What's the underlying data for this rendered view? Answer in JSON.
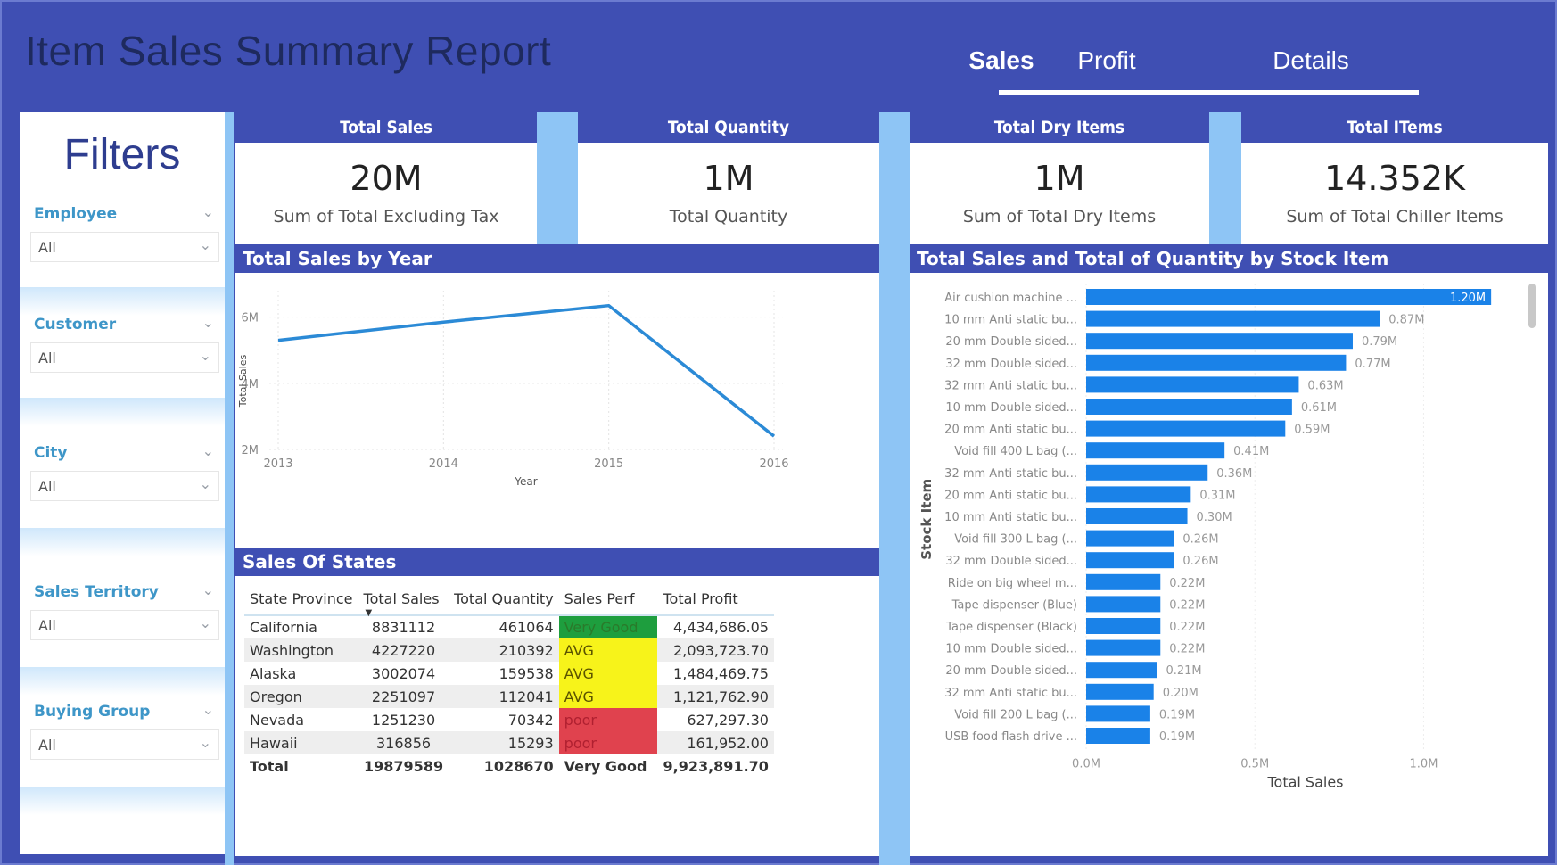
{
  "header": {
    "title": "Item Sales Summary Report",
    "tabs": [
      {
        "label": "Sales",
        "active": true
      },
      {
        "label": "Profit",
        "active": false
      },
      {
        "label": "Details",
        "active": false
      }
    ]
  },
  "colors": {
    "header_bg": "#3f4fb3",
    "accent_strip": "#8ec5f5",
    "line": "#2b8ad6",
    "bar": "#1a82e8",
    "perf_very_good": "#1e9e3e",
    "perf_avg": "#f7f31a",
    "perf_poor": "#e0424e"
  },
  "filters": {
    "title": "Filters",
    "slicers": [
      {
        "label": "Employee",
        "value": "All"
      },
      {
        "label": "Customer",
        "value": "All"
      },
      {
        "label": "City",
        "value": "All"
      },
      {
        "label": "Sales Territory",
        "value": "All"
      },
      {
        "label": "Buying Group",
        "value": "All"
      }
    ]
  },
  "kpis": [
    {
      "title": "Total Sales",
      "value": "20M",
      "subtitle": "Sum of Total Excluding Tax"
    },
    {
      "title": "Total Quantity",
      "value": "1M",
      "subtitle": "Total Quantity"
    },
    {
      "title": "Total Dry Items",
      "value": "1M",
      "subtitle": "Sum of Total Dry Items"
    },
    {
      "title": "Total ITems",
      "value": "14.352K",
      "subtitle": "Sum of Total Chiller Items"
    }
  ],
  "line_panel": {
    "title": "Total Sales by Year"
  },
  "table_panel": {
    "title": "Sales Of States",
    "columns": [
      "State Province",
      "Total Sales",
      "Total Quantity",
      "Sales Perf",
      "Total Profit"
    ],
    "rows": [
      {
        "state": "California",
        "sales": "8831112",
        "qty": "461064",
        "perf": "Very Good",
        "perf_level": "very_good",
        "profit": "4,434,686.05"
      },
      {
        "state": "Washington",
        "sales": "4227220",
        "qty": "210392",
        "perf": "AVG",
        "perf_level": "avg",
        "profit": "2,093,723.70"
      },
      {
        "state": "Alaska",
        "sales": "3002074",
        "qty": "159538",
        "perf": "AVG",
        "perf_level": "avg",
        "profit": "1,484,469.75"
      },
      {
        "state": "Oregon",
        "sales": "2251097",
        "qty": "112041",
        "perf": "AVG",
        "perf_level": "avg",
        "profit": "1,121,762.90"
      },
      {
        "state": "Nevada",
        "sales": "1251230",
        "qty": "70342",
        "perf": "poor",
        "perf_level": "poor",
        "profit": "627,297.30"
      },
      {
        "state": "Hawaii",
        "sales": "316856",
        "qty": "15293",
        "perf": "poor",
        "perf_level": "poor",
        "profit": "161,952.00"
      }
    ],
    "total": {
      "state": "Total",
      "sales": "19879589",
      "qty": "1028670",
      "perf": "Very Good",
      "profit": "9,923,891.70"
    }
  },
  "bar_panel": {
    "title": "Total Sales and Total of Quantity by Stock Item"
  },
  "chart_data": [
    {
      "type": "line",
      "title": "Total Sales by Year",
      "xlabel": "Year",
      "ylabel": "Total Sales",
      "x": [
        "2013",
        "2014",
        "2015",
        "2016"
      ],
      "series": [
        {
          "name": "Total Sales",
          "values": [
            5.3,
            5.85,
            6.35,
            2.4
          ]
        }
      ],
      "value_unit": "M",
      "yticks": [
        "2M",
        "4M",
        "6M"
      ],
      "ytick_values": [
        2,
        4,
        6
      ],
      "ylim": [
        2,
        6.8
      ],
      "grid": true
    },
    {
      "type": "bar",
      "orientation": "horizontal",
      "title": "Total Sales and Total of Quantity by Stock Item",
      "xlabel": "Total Sales",
      "ylabel": "Stock Item",
      "categories": [
        "Air cushion machine ...",
        "10 mm Anti static bu...",
        "20 mm Double sided...",
        "32 mm Double sided...",
        "32 mm Anti static bu...",
        "10 mm Double sided...",
        "20 mm Anti static bu...",
        "Void fill 400 L bag (...",
        "32 mm Anti static bu...",
        "20 mm Anti static bu...",
        "10 mm Anti static bu...",
        "Void fill 300 L bag (...",
        "32 mm Double sided...",
        "Ride on big wheel m...",
        "Tape dispenser (Blue)",
        "Tape dispenser (Black)",
        "10 mm Double sided...",
        "20 mm Double sided...",
        "32 mm Anti static bu...",
        "Void fill 200 L bag (...",
        "USB food flash drive ..."
      ],
      "values": [
        1.2,
        0.87,
        0.79,
        0.77,
        0.63,
        0.61,
        0.59,
        0.41,
        0.36,
        0.31,
        0.3,
        0.26,
        0.26,
        0.22,
        0.22,
        0.22,
        0.22,
        0.21,
        0.2,
        0.19,
        0.19
      ],
      "data_labels": [
        "1.20M",
        "0.87M",
        "0.79M",
        "0.77M",
        "0.63M",
        "0.61M",
        "0.59M",
        "0.41M",
        "0.36M",
        "0.31M",
        "0.30M",
        "0.26M",
        "0.26M",
        "0.22M",
        "0.22M",
        "0.22M",
        "0.22M",
        "0.21M",
        "0.20M",
        "0.19M",
        "0.19M"
      ],
      "xticks": [
        "0.0M",
        "0.5M",
        "1.0M"
      ],
      "xtick_values": [
        0,
        0.5,
        1.0
      ],
      "xlim": [
        0,
        1.3
      ],
      "value_unit": "M"
    }
  ]
}
